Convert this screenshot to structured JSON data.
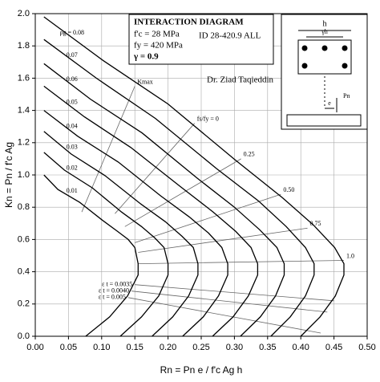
{
  "chart_data": {
    "type": "line",
    "x_label": "Rn = Pn e / f'c Ag h",
    "y_label": "Kn = Pn / f'c Ag",
    "xlim": [
      0,
      0.5
    ],
    "ylim": [
      0,
      2
    ],
    "xticks": [
      {
        "value": 0,
        "label": "0.00"
      },
      {
        "value": 0.05,
        "label": "0.05"
      },
      {
        "value": 0.1,
        "label": "0.10"
      },
      {
        "value": 0.15,
        "label": "0.15"
      },
      {
        "value": 0.2,
        "label": "0.20"
      },
      {
        "value": 0.25,
        "label": "0.25"
      },
      {
        "value": 0.3,
        "label": "0.30"
      },
      {
        "value": 0.35,
        "label": "0.35"
      },
      {
        "value": 0.4,
        "label": "0.40"
      },
      {
        "value": 0.45,
        "label": "0.45"
      },
      {
        "value": 0.5,
        "label": "0.50"
      }
    ],
    "yticks": [
      {
        "value": 0,
        "label": "0.0"
      },
      {
        "value": 0.2,
        "label": "0.2"
      },
      {
        "value": 0.4,
        "label": "0.4"
      },
      {
        "value": 0.6,
        "label": "0.6"
      },
      {
        "value": 0.8,
        "label": "0.8"
      },
      {
        "value": 1,
        "label": "1.0"
      },
      {
        "value": 1.2,
        "label": "1.2"
      },
      {
        "value": 1.4,
        "label": "1.4"
      },
      {
        "value": 1.6,
        "label": "1.6"
      },
      {
        "value": 1.8,
        "label": "1.8"
      },
      {
        "value": 2,
        "label": "2.0"
      }
    ],
    "grid": true,
    "series": [
      {
        "name": "ρg = 0.08",
        "color": "#000000",
        "x": [
          0.013,
          0.102,
          0.2,
          0.302,
          0.372,
          0.419,
          0.451,
          0.465,
          0.465,
          0.452,
          0.429,
          0.4
        ],
        "values": [
          1.98,
          1.71,
          1.44,
          1.09,
          0.86,
          0.69,
          0.55,
          0.45,
          0.38,
          0.25,
          0.12,
          0
        ]
      },
      {
        "name": "0.07",
        "color": "#000000",
        "x": [
          0.013,
          0.092,
          0.181,
          0.273,
          0.336,
          0.378,
          0.407,
          0.42,
          0.42,
          0.407,
          0.384,
          0.355
        ],
        "values": [
          1.84,
          1.6,
          1.35,
          1.04,
          0.84,
          0.68,
          0.55,
          0.45,
          0.38,
          0.25,
          0.12,
          0
        ]
      },
      {
        "name": "0.06",
        "color": "#000000",
        "x": [
          0.013,
          0.083,
          0.161,
          0.244,
          0.3,
          0.338,
          0.364,
          0.375,
          0.375,
          0.362,
          0.339,
          0.309
        ],
        "values": [
          1.69,
          1.47,
          1.26,
          0.98,
          0.8,
          0.66,
          0.55,
          0.45,
          0.38,
          0.25,
          0.12,
          0
        ]
      },
      {
        "name": "0.05",
        "color": "#000000",
        "x": [
          0.013,
          0.074,
          0.144,
          0.218,
          0.268,
          0.302,
          0.325,
          0.335,
          0.335,
          0.321,
          0.298,
          0.267
        ],
        "values": [
          1.55,
          1.36,
          1.17,
          0.93,
          0.77,
          0.65,
          0.55,
          0.45,
          0.38,
          0.25,
          0.12,
          0
        ]
      },
      {
        "name": "0.04",
        "color": "#000000",
        "x": [
          0.013,
          0.064,
          0.125,
          0.189,
          0.232,
          0.261,
          0.281,
          0.29,
          0.29,
          0.276,
          0.253,
          0.222
        ],
        "values": [
          1.4,
          1.24,
          1.08,
          0.87,
          0.74,
          0.64,
          0.55,
          0.45,
          0.38,
          0.25,
          0.12,
          0
        ]
      },
      {
        "name": "0.03",
        "color": "#000000",
        "x": [
          0.013,
          0.054,
          0.105,
          0.159,
          0.196,
          0.221,
          0.238,
          0.245,
          0.245,
          0.231,
          0.207,
          0.176
        ],
        "values": [
          1.27,
          1.13,
          0.996,
          0.82,
          0.71,
          0.62,
          0.55,
          0.45,
          0.38,
          0.25,
          0.12,
          0
        ]
      },
      {
        "name": "0.02",
        "color": "#000000",
        "x": [
          0.013,
          0.044,
          0.086,
          0.13,
          0.16,
          0.18,
          0.194,
          0.2,
          0.2,
          0.186,
          0.16,
          0.128
        ],
        "values": [
          1.14,
          1.03,
          0.92,
          0.77,
          0.68,
          0.61,
          0.55,
          0.45,
          0.38,
          0.25,
          0.12,
          0
        ]
      },
      {
        "name": "0.01",
        "color": "#000000",
        "x": [
          0.013,
          0.034,
          0.067,
          0.101,
          0.124,
          0.14,
          0.15,
          0.155,
          0.155,
          0.139,
          0.112,
          0.076
        ],
        "values": [
          1,
          0.91,
          0.83,
          0.72,
          0.65,
          0.6,
          0.55,
          0.45,
          0.38,
          0.25,
          0.12,
          0
        ]
      }
    ],
    "reference_lines": [
      {
        "name": "Kmax",
        "label_at": "end",
        "x": [
          0.07,
          0.15
        ],
        "values": [
          0.77,
          1.55
        ]
      },
      {
        "name": "fs/fy = 0",
        "label_at": "end",
        "x": [
          0.12,
          0.24
        ],
        "values": [
          0.76,
          1.32
        ]
      },
      {
        "name": "0.25",
        "label_at": "end",
        "x": [
          0.135,
          0.31
        ],
        "values": [
          0.68,
          1.1
        ]
      },
      {
        "name": "0.50",
        "label_at": "end",
        "x": [
          0.15,
          0.37
        ],
        "values": [
          0.58,
          0.88
        ]
      },
      {
        "name": "0.75",
        "label_at": "end",
        "x": [
          0.155,
          0.41
        ],
        "values": [
          0.52,
          0.67
        ]
      },
      {
        "name": "1.0",
        "label_at": "end",
        "x": [
          0.155,
          0.465
        ],
        "values": [
          0.45,
          0.47
        ]
      },
      {
        "name": "ε t = 0.0035",
        "label_at": "start",
        "x": [
          0.15,
          0.45
        ],
        "values": [
          0.32,
          0.22
        ]
      },
      {
        "name": "ε t = 0.0040",
        "label_at": "start",
        "x": [
          0.145,
          0.44
        ],
        "values": [
          0.28,
          0.15
        ]
      },
      {
        "name": "ε t = 0.005",
        "label_at": "start",
        "x": [
          0.14,
          0.43
        ],
        "values": [
          0.24,
          0.02
        ]
      }
    ],
    "annotations": [
      "INTERACTION DIAGRAM",
      "f'c = 28 MPa",
      "fy = 420 MPa",
      "γ = 0.9",
      "ID 28-420.9 ALL",
      "Dr. Ziad Taqieddin"
    ],
    "inset_labels": [
      "h",
      "γh",
      "e",
      "Pn"
    ]
  }
}
